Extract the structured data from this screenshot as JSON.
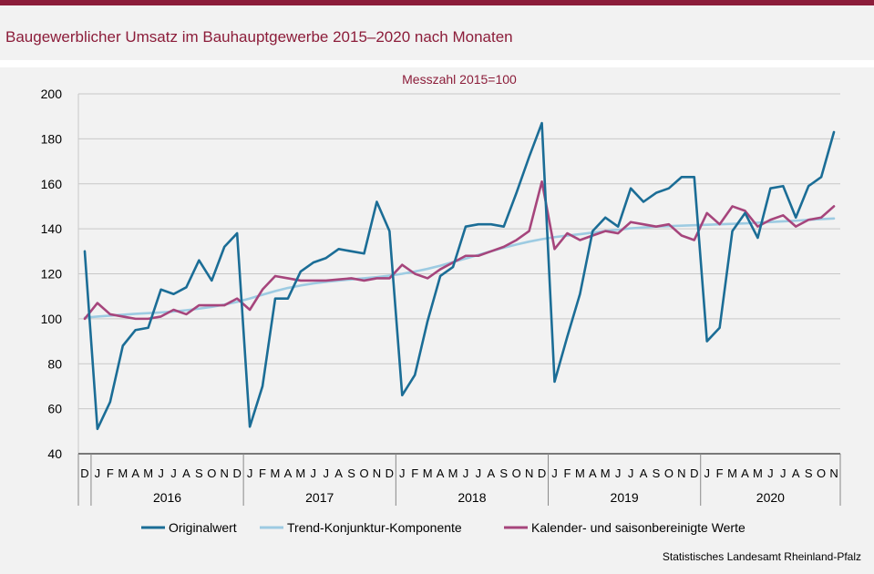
{
  "header": {
    "title": "Baugewerblicher Umsatz im Bauhauptgewerbe 2015–2020 nach Monaten"
  },
  "source": "Statistisches Landesamt Rheinland-Pfalz",
  "colors": {
    "brand": "#8c1d3a",
    "original": "#1b6d96",
    "trend": "#9dcbe2",
    "seasonal": "#a6457c"
  },
  "chart_data": {
    "type": "line",
    "subtitle": "Messzahl 2015=100",
    "ylim": [
      40,
      200
    ],
    "yticks": [
      40,
      60,
      80,
      100,
      120,
      140,
      160,
      180,
      200
    ],
    "grid": true,
    "legend_position": "bottom",
    "months": [
      "D",
      "J",
      "F",
      "M",
      "A",
      "M",
      "J",
      "J",
      "A",
      "S",
      "O",
      "N",
      "D",
      "J",
      "F",
      "M",
      "A",
      "M",
      "J",
      "J",
      "A",
      "S",
      "O",
      "N",
      "D",
      "J",
      "F",
      "M",
      "A",
      "M",
      "J",
      "J",
      "A",
      "S",
      "O",
      "N",
      "D",
      "J",
      "F",
      "M",
      "A",
      "M",
      "J",
      "J",
      "A",
      "S",
      "O",
      "N",
      "D",
      "J",
      "F",
      "M",
      "A",
      "M",
      "J",
      "J",
      "A",
      "S",
      "O",
      "N"
    ],
    "years": [
      {
        "label": "2016",
        "start": 1,
        "end": 12
      },
      {
        "label": "2017",
        "start": 13,
        "end": 24
      },
      {
        "label": "2018",
        "start": 25,
        "end": 36
      },
      {
        "label": "2019",
        "start": 37,
        "end": 48
      },
      {
        "label": "2020",
        "start": 49,
        "end": 59
      }
    ],
    "series": [
      {
        "name": "Originalwert",
        "values": [
          130,
          51,
          63,
          88,
          95,
          96,
          113,
          111,
          114,
          126,
          117,
          132,
          138,
          52,
          70,
          109,
          109,
          121,
          125,
          127,
          131,
          130,
          129,
          152,
          139,
          66,
          75,
          99,
          119,
          123,
          141,
          142,
          142,
          141,
          156,
          172,
          187,
          72,
          92,
          111,
          139,
          145,
          141,
          158,
          152,
          156,
          158,
          163,
          163,
          90,
          96,
          139,
          147,
          136,
          158,
          159,
          145,
          159,
          163,
          183
        ]
      },
      {
        "name": "Trend-Konjunktur-Komponente",
        "values": [
          100.5,
          101,
          101.4,
          101.8,
          102.2,
          102.5,
          102.8,
          103.2,
          103.8,
          104.5,
          105.3,
          106.3,
          107.5,
          109,
          110.7,
          112.3,
          113.7,
          114.8,
          115.7,
          116.4,
          117,
          117.5,
          118,
          118.5,
          119.2,
          120,
          121,
          122.2,
          123.6,
          125.2,
          126.8,
          128.4,
          130,
          131.6,
          133,
          134.3,
          135.4,
          136.3,
          137,
          137.6,
          138.3,
          139,
          139.6,
          140.2,
          140.6,
          141,
          141.2,
          141.4,
          141.6,
          141.8,
          142,
          142.2,
          142.4,
          142.7,
          143,
          143.3,
          143.6,
          144,
          144.3,
          144.6
        ]
      },
      {
        "name": "Kalender- und saisonbereinigte Werte",
        "values": [
          100,
          107,
          102,
          101,
          100,
          100,
          101,
          104,
          102,
          106,
          106,
          106,
          109,
          104,
          113,
          119,
          118,
          117,
          117,
          117,
          117.5,
          118,
          117,
          118,
          118,
          124,
          120,
          118,
          122,
          125,
          128,
          128,
          130,
          132,
          135,
          139,
          161,
          131,
          138,
          135,
          137,
          139,
          138,
          143,
          142,
          141,
          142,
          137,
          135,
          147,
          142,
          150,
          148,
          141,
          144,
          146,
          141,
          144,
          145,
          150
        ]
      }
    ]
  }
}
